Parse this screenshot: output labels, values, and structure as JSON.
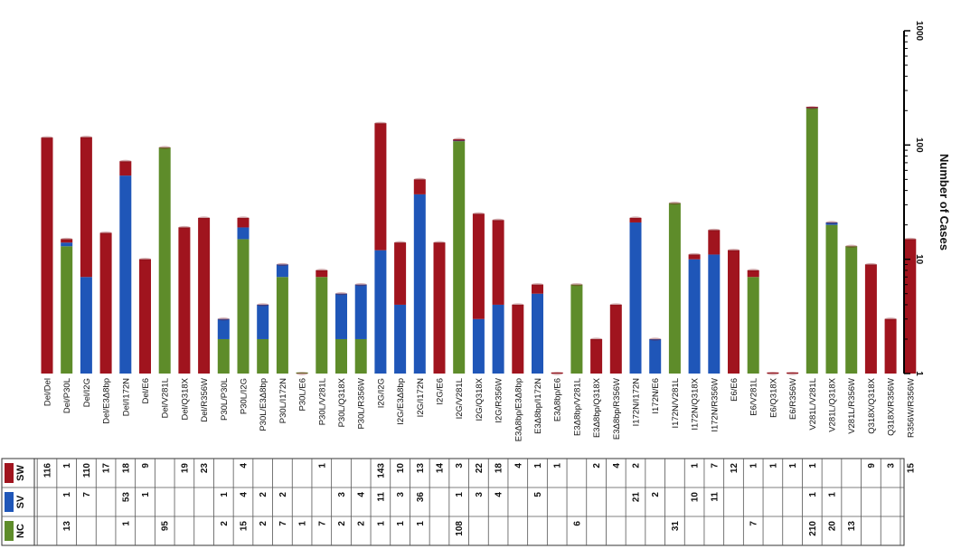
{
  "chart_data": {
    "type": "bar",
    "stacked": true,
    "scale": "log",
    "ylim": [
      1,
      1000
    ],
    "ylabel": "Number of Cases",
    "yticks": [
      "1",
      "10",
      "100",
      "1000"
    ],
    "legend_rows": [
      {
        "name": "SW",
        "color": "#a0141e"
      },
      {
        "name": "SV",
        "color": "#1f56b8"
      },
      {
        "name": "NC",
        "color": "#5e8c2a"
      }
    ],
    "categories": [
      "Del/Del",
      "Del/P30L",
      "Del/I2G",
      "Del/E3Δ8bp",
      "Del/I172N",
      "Del/E6",
      "Del/V281L",
      "Del/Q318X",
      "Del/R356W",
      "P30L/P30L",
      "P30L/I2G",
      "P30L/E3Δ8bp",
      "P30L/I172N",
      "P30L/E6",
      "P30L/V281L",
      "P30L/Q318X",
      "P30L/R356W",
      "I2G/I2G",
      "I2G/E3Δ8bp",
      "I2G/I172N",
      "I2G/E6",
      "I2G/V281L",
      "I2G/Q318X",
      "I2G/R356W",
      "E3Δ8bp/E3Δ8bp",
      "E3Δ8bp/I172N",
      "E3Δ8bp/E6",
      "E3Δ8bp/V281L",
      "E3Δ8bp/Q318X",
      "E3Δ8bp/R356W",
      "I172N/I172N",
      "I172N/E6",
      "I172N/V281L",
      "I172N/Q318X",
      "I172N/R356W",
      "E6/E6",
      "E6/V281L",
      "E6/Q318X",
      "E6/R356W",
      "V281L/V281L",
      "V281L/Q318X",
      "V281L/R356W",
      "Q318X/Q318X",
      "Q318X/R356W",
      "R356W/R356W"
    ],
    "series": [
      {
        "name": "NC",
        "color": "#5e8c2a",
        "values": [
          null,
          "13",
          null,
          null,
          "1",
          null,
          "95",
          null,
          null,
          "2",
          "15",
          "2",
          "7",
          "1",
          "7",
          "2",
          "2",
          "1",
          "1",
          "1",
          null,
          "108",
          null,
          null,
          null,
          null,
          null,
          "6",
          null,
          null,
          null,
          null,
          "31",
          null,
          null,
          null,
          "7",
          null,
          null,
          "210",
          "20",
          "13",
          null,
          null,
          null
        ]
      },
      {
        "name": "SV",
        "color": "#1f56b8",
        "values": [
          null,
          "1",
          "7",
          null,
          "53",
          "1",
          null,
          null,
          null,
          "1",
          "4",
          "2",
          "2",
          null,
          null,
          "3",
          "4",
          "11",
          "3",
          "36",
          null,
          "1",
          "3",
          "4",
          null,
          "5",
          null,
          null,
          null,
          null,
          "21",
          "2",
          null,
          "10",
          "11",
          null,
          null,
          null,
          null,
          "1",
          "1",
          null,
          null,
          null,
          null
        ]
      },
      {
        "name": "SW",
        "color": "#a0141e",
        "values": [
          "116",
          "1",
          "110",
          "17",
          "18",
          "9",
          null,
          "19",
          "23",
          null,
          "4",
          null,
          null,
          null,
          "1",
          null,
          null,
          "143",
          "10",
          "13",
          "14",
          "3",
          "22",
          "18",
          "4",
          "1",
          "1",
          null,
          "2",
          "4",
          "2",
          null,
          null,
          "1",
          "7",
          "12",
          "1",
          "1",
          "1",
          "1",
          null,
          null,
          "9",
          "3",
          "15"
        ]
      }
    ]
  }
}
